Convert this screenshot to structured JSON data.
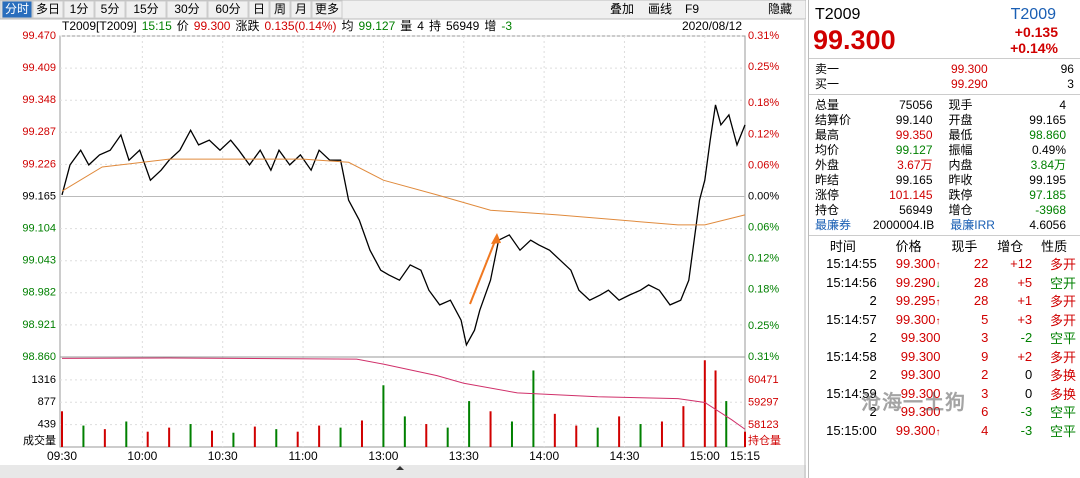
{
  "toolbar": {
    "tabs": [
      "分时",
      "多日",
      "1分",
      "5分",
      "15分",
      "30分",
      "60分",
      "日",
      "周",
      "月",
      "更多"
    ],
    "tools": [
      "叠加",
      "画线",
      "F9",
      "隐藏"
    ]
  },
  "info": {
    "items": [
      {
        "label": "T2009[T2009]",
        "color": "#000"
      },
      {
        "label": "15:15",
        "color": "#008000"
      },
      {
        "label": "价",
        "color": "#000"
      },
      {
        "label": "99.300",
        "color": "#d00000"
      },
      {
        "label": "涨跌",
        "color": "#000"
      },
      {
        "label": "0.135(0.14%)",
        "color": "#d00000"
      },
      {
        "label": "均",
        "color": "#000"
      },
      {
        "label": "99.127",
        "color": "#008000"
      },
      {
        "label": "量",
        "color": "#000"
      },
      {
        "label": "4",
        "color": "#000"
      },
      {
        "label": "持",
        "color": "#000"
      },
      {
        "label": "56949",
        "color": "#000"
      },
      {
        "label": "增",
        "color": "#000"
      },
      {
        "label": "-3",
        "color": "#008000"
      }
    ],
    "date": "2020/08/12"
  },
  "chart": {
    "type": "line",
    "xlim": [
      0,
      255
    ],
    "xticks": [
      {
        "value": 0,
        "label": "09:30"
      },
      {
        "value": 30,
        "label": "10:00"
      },
      {
        "value": 60,
        "label": "10:30"
      },
      {
        "value": 90,
        "label": "11:00"
      },
      {
        "value": 120,
        "label": "13:00"
      },
      {
        "value": 150,
        "label": "13:30"
      },
      {
        "value": 180,
        "label": "14:00"
      },
      {
        "value": 210,
        "label": "14:30"
      },
      {
        "value": 240,
        "label": "15:00"
      },
      {
        "value": 255,
        "label": "15:15"
      }
    ],
    "ylim": [
      98.86,
      99.47
    ],
    "yticks": [
      {
        "value": 99.47,
        "label": "99.470"
      },
      99.409,
      99.348,
      99.287,
      99.226,
      99.165,
      99.104,
      99.043,
      98.982,
      98.921,
      {
        "value": 98.86,
        "label": "98.860"
      }
    ],
    "y2lim": [
      -0.31,
      0.31
    ],
    "y2ticks": [
      {
        "value": 0.31,
        "label": "0.31%"
      },
      {
        "value": 0.25,
        "label": "0.25%"
      },
      {
        "value": 0.18,
        "label": "0.18%"
      },
      {
        "value": 0.12,
        "label": "0.12%"
      },
      {
        "value": 0.06,
        "label": "0.06%"
      },
      {
        "value": 0,
        "label": "0.00%"
      },
      {
        "value": -0.06,
        "label": "0.06%"
      },
      {
        "value": -0.12,
        "label": "0.12%"
      },
      {
        "value": -0.18,
        "label": "0.18%"
      },
      {
        "value": -0.25,
        "label": "0.25%"
      },
      {
        "value": -0.31,
        "label": "0.31%"
      }
    ],
    "series": [
      {
        "name": "价",
        "color": "#000000",
        "x": [
          0,
          3,
          7,
          10,
          14,
          18,
          22,
          25,
          29,
          33,
          37,
          40,
          44,
          48,
          51,
          55,
          59,
          63,
          66,
          70,
          74,
          78,
          81,
          85,
          89,
          93,
          96,
          100,
          104,
          107,
          111,
          115,
          119,
          122,
          126,
          130,
          134,
          137,
          141,
          145,
          149,
          151,
          154,
          156,
          160,
          163,
          167,
          171,
          175,
          178,
          182,
          186,
          190,
          193,
          197,
          201,
          204,
          208,
          212,
          216,
          219,
          223,
          227,
          231,
          234,
          238,
          240,
          242,
          244,
          246,
          249,
          252,
          255
        ],
        "values": [
          99.168,
          99.225,
          99.253,
          99.225,
          99.244,
          99.253,
          99.282,
          99.234,
          99.253,
          99.196,
          99.215,
          99.234,
          99.253,
          99.291,
          99.263,
          99.272,
          99.253,
          99.272,
          99.253,
          99.225,
          99.253,
          99.215,
          99.253,
          99.225,
          99.244,
          99.215,
          99.253,
          99.234,
          99.234,
          99.158,
          99.12,
          99.063,
          99.025,
          99.016,
          99.006,
          99.035,
          99.025,
          98.987,
          98.959,
          98.968,
          98.93,
          98.883,
          98.911,
          98.949,
          99.006,
          99.082,
          99.092,
          99.063,
          99.082,
          99.073,
          99.063,
          99.044,
          99.025,
          98.987,
          98.968,
          98.978,
          98.987,
          98.968,
          98.978,
          98.987,
          98.997,
          98.987,
          98.959,
          98.968,
          99.006,
          99.158,
          99.196,
          99.272,
          99.339,
          99.301,
          99.32,
          99.263,
          99.301
        ]
      },
      {
        "name": "均",
        "color": "#e08a3c",
        "x": [
          0,
          15,
          40,
          90,
          107,
          120,
          140,
          160,
          185,
          230,
          240,
          255
        ],
        "values": [
          99.175,
          99.221,
          99.236,
          99.236,
          99.23,
          99.196,
          99.168,
          99.139,
          99.13,
          99.111,
          99.111,
          99.13
        ]
      }
    ],
    "volume": {
      "label": "成交量",
      "ylim": [
        0,
        1764
      ],
      "yticks": [
        1316,
        877,
        439
      ],
      "x": [
        0,
        8,
        16,
        24,
        32,
        40,
        48,
        56,
        64,
        72,
        80,
        88,
        96,
        104,
        112,
        120,
        128,
        136,
        144,
        152,
        160,
        168,
        176,
        184,
        192,
        200,
        208,
        216,
        224,
        232,
        240,
        244,
        248,
        255
      ],
      "values": [
        700,
        420,
        350,
        500,
        300,
        380,
        450,
        320,
        280,
        400,
        350,
        300,
        420,
        380,
        520,
        1210,
        600,
        450,
        380,
        900,
        700,
        500,
        1500,
        650,
        420,
        380,
        600,
        450,
        500,
        800,
        1700,
        1500,
        900,
        300
      ],
      "colors": [
        "#d00000",
        "#008000",
        "#d00000",
        "#008000",
        "#d00000",
        "#d00000",
        "#008000",
        "#d00000",
        "#008000",
        "#d00000",
        "#008000",
        "#d00000",
        "#d00000",
        "#008000",
        "#d00000",
        "#008000",
        "#008000",
        "#d00000",
        "#008000",
        "#008000",
        "#d00000",
        "#008000",
        "#008000",
        "#d00000",
        "#d00000",
        "#008000",
        "#d00000",
        "#008000",
        "#d00000",
        "#d00000",
        "#d00000",
        "#d00000",
        "#008000",
        "#d00000"
      ]
    },
    "open_interest": {
      "label": "持仓量",
      "color": "#d0306a",
      "ylim": [
        56975,
        61672
      ],
      "yticks": [
        60471,
        59297,
        58123
      ],
      "x": [
        0,
        40,
        110,
        120,
        140,
        150,
        170,
        200,
        230,
        240,
        250,
        255
      ],
      "values": [
        61600,
        61620,
        61560,
        61300,
        60700,
        60300,
        59800,
        59600,
        59500,
        59300,
        58400,
        57900
      ]
    }
  },
  "quote": {
    "symbol": "T2009",
    "code": "T2009",
    "price": "99.300",
    "change": "+0.135",
    "pct": "+0.14%",
    "book": [
      [
        "卖一",
        "99.300",
        "96"
      ],
      [
        "买一",
        "99.290",
        "3"
      ]
    ],
    "stats": [
      [
        "总量",
        "75056",
        "现手",
        "4"
      ],
      [
        "结算价",
        "99.140",
        "开盘",
        "99.165"
      ],
      [
        "最高",
        "99.350",
        "最低",
        "98.860"
      ],
      [
        "均价",
        "99.127",
        "振幅",
        "0.49%"
      ],
      [
        "外盘",
        "3.67万",
        "内盘",
        "3.84万"
      ],
      [
        "昨结",
        "99.165",
        "昨收",
        "99.195"
      ],
      [
        "涨停",
        "101.145",
        "跌停",
        "97.185"
      ],
      [
        "持仓",
        "56949",
        "增仓",
        "-3968"
      ],
      [
        "最廉券",
        "2000004.IB",
        "最廉IRR",
        "4.6056"
      ]
    ]
  },
  "trades": {
    "header": [
      "时间",
      "价格",
      "现手",
      "增仓",
      "性质"
    ],
    "rows": [
      [
        "15:14:55",
        "99.300",
        "↑",
        "22",
        "+12",
        "多开"
      ],
      [
        "15:14:56",
        "99.290",
        "↓",
        "28",
        "+5",
        "空开"
      ],
      [
        "2",
        "99.295",
        "↑",
        "28",
        "+1",
        "多开"
      ],
      [
        "15:14:57",
        "99.300",
        "↑",
        "5",
        "+3",
        "多开"
      ],
      [
        "2",
        "99.300",
        "",
        "3",
        "-2",
        "空平"
      ],
      [
        "15:14:58",
        "99.300",
        "",
        "9",
        "+2",
        "多开"
      ],
      [
        "2",
        "99.300",
        "",
        "2",
        "0",
        "多换"
      ],
      [
        "15:14:59",
        "99.300",
        "",
        "3",
        "0",
        "多换"
      ],
      [
        "2",
        "99.300",
        "",
        "6",
        "-3",
        "空平"
      ],
      [
        "15:15:00",
        "99.300",
        "↑",
        "4",
        "-3",
        "空平"
      ]
    ]
  },
  "watermark": "沧海一土狗"
}
